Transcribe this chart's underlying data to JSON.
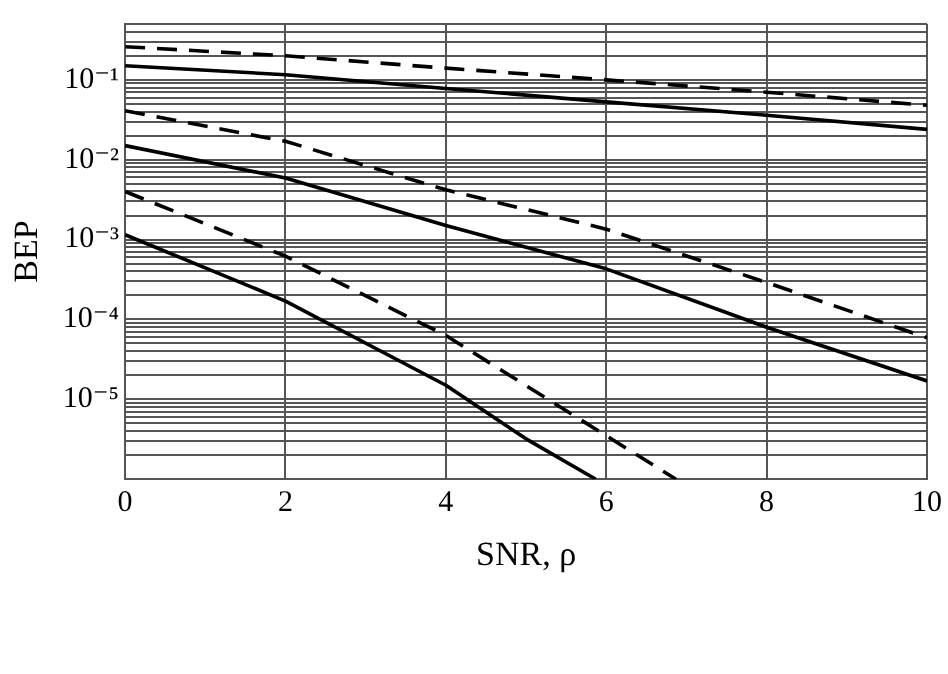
{
  "chart_data": {
    "type": "line",
    "xlabel": "SNR, ρ",
    "ylabel": "BEP",
    "log": "y",
    "grid": true,
    "legend": false,
    "marker": "none",
    "x": [
      0,
      2,
      4,
      6,
      8,
      10
    ],
    "xlim": [
      0,
      10
    ],
    "xticks": [
      0,
      2,
      4,
      6,
      8,
      10
    ],
    "ylim": [
      1e-06,
      0.5
    ],
    "yticks": [
      {
        "value": 2e-06,
        "label": null
      },
      {
        "value": 3e-06,
        "label": null
      },
      {
        "value": 4e-06,
        "label": null
      },
      {
        "value": 5e-06,
        "label": null
      },
      {
        "value": 6e-06,
        "label": null
      },
      {
        "value": 7e-06,
        "label": null
      },
      {
        "value": 8e-06,
        "label": null
      },
      {
        "value": 9e-06,
        "label": null
      },
      {
        "value": 1e-05,
        "label": "10⁻⁵"
      },
      {
        "value": 2e-05,
        "label": null
      },
      {
        "value": 3e-05,
        "label": null
      },
      {
        "value": 4e-05,
        "label": null
      },
      {
        "value": 5e-05,
        "label": null
      },
      {
        "value": 6e-05,
        "label": null
      },
      {
        "value": 7e-05,
        "label": null
      },
      {
        "value": 8e-05,
        "label": null
      },
      {
        "value": 9e-05,
        "label": null
      },
      {
        "value": 0.0001,
        "label": "10⁻⁴"
      },
      {
        "value": 0.0002,
        "label": null
      },
      {
        "value": 0.0003,
        "label": null
      },
      {
        "value": 0.0004,
        "label": null
      },
      {
        "value": 0.0005,
        "label": null
      },
      {
        "value": 0.0006,
        "label": null
      },
      {
        "value": 0.0007,
        "label": null
      },
      {
        "value": 0.0008,
        "label": null
      },
      {
        "value": 0.0009,
        "label": null
      },
      {
        "value": 0.001,
        "label": "10⁻³"
      },
      {
        "value": 0.002,
        "label": null
      },
      {
        "value": 0.003,
        "label": null
      },
      {
        "value": 0.004,
        "label": null
      },
      {
        "value": 0.005,
        "label": null
      },
      {
        "value": 0.006,
        "label": null
      },
      {
        "value": 0.007,
        "label": null
      },
      {
        "value": 0.008,
        "label": null
      },
      {
        "value": 0.009,
        "label": null
      },
      {
        "value": 0.01,
        "label": "10⁻²"
      },
      {
        "value": 0.02,
        "label": null
      },
      {
        "value": 0.03,
        "label": null
      },
      {
        "value": 0.04,
        "label": null
      },
      {
        "value": 0.05,
        "label": null
      },
      {
        "value": 0.06,
        "label": null
      },
      {
        "value": 0.07,
        "label": null
      },
      {
        "value": 0.08,
        "label": null
      },
      {
        "value": 0.09,
        "label": null
      },
      {
        "value": 0.1,
        "label": "10⁻¹"
      },
      {
        "value": 0.2,
        "label": null
      },
      {
        "value": 0.3,
        "label": null
      },
      {
        "value": 0.4,
        "label": null
      },
      {
        "value": 0.5,
        "label": null
      }
    ],
    "series": [
      {
        "color": "#000000",
        "line_style": "dashed",
        "values": [
          0.26,
          0.2,
          0.14,
          0.1,
          0.07,
          0.048
        ]
      },
      {
        "color": "#000000",
        "line_style": "solid",
        "values": [
          0.15,
          0.116,
          0.078,
          0.053,
          0.036,
          0.024
        ]
      },
      {
        "color": "#000000",
        "line_style": "dashed",
        "values": [
          0.041,
          0.017,
          0.0042,
          0.00135,
          0.00029,
          5.9e-05
        ]
      },
      {
        "color": "#000000",
        "line_style": "solid",
        "values": [
          0.015,
          0.0059,
          0.0015,
          0.00043,
          8e-05,
          1.7e-05
        ]
      },
      {
        "color": "#000000",
        "line_style": "dashed",
        "x": [
          0,
          2,
          4,
          6,
          6.87
        ],
        "values": [
          0.004,
          0.00062,
          6.3e-05,
          3.5e-06,
          1e-06
        ]
      },
      {
        "color": "#000000",
        "line_style": "solid",
        "x": [
          0,
          2,
          4,
          5,
          5.87
        ],
        "values": [
          0.00115,
          0.00017,
          1.5e-05,
          3.2e-06,
          1e-06
        ]
      }
    ]
  }
}
